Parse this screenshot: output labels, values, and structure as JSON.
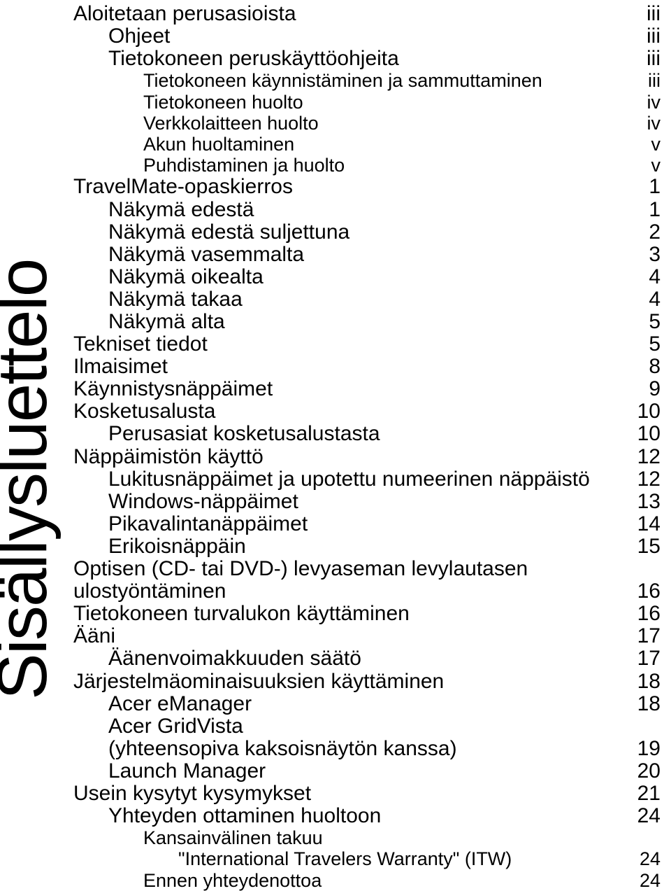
{
  "sidebar_title": "Sisällysluettelo",
  "toc": [
    {
      "level": "l0",
      "label": "Aloitetaan perusasioista",
      "page": "iii"
    },
    {
      "level": "l1",
      "label": "Ohjeet",
      "page": "iii"
    },
    {
      "level": "l1",
      "label": "Tietokoneen peruskäyttöohjeita",
      "page": "iii"
    },
    {
      "level": "l2",
      "label": "Tietokoneen käynnistäminen ja sammuttaminen",
      "page": "iii"
    },
    {
      "level": "l2",
      "label": "Tietokoneen huolto",
      "page": "iv"
    },
    {
      "level": "l2",
      "label": "Verkkolaitteen huolto",
      "page": "iv"
    },
    {
      "level": "l2",
      "label": "Akun huoltaminen",
      "page": "v"
    },
    {
      "level": "l2",
      "label": "Puhdistaminen ja huolto",
      "page": "v"
    },
    {
      "level": "l0",
      "label": "TravelMate-opaskierros",
      "page": "1"
    },
    {
      "level": "l1",
      "label": "Näkymä edestä",
      "page": "1"
    },
    {
      "level": "l1",
      "label": "Näkymä edestä suljettuna",
      "page": "2"
    },
    {
      "level": "l1",
      "label": "Näkymä vasemmalta",
      "page": "3"
    },
    {
      "level": "l1",
      "label": "Näkymä oikealta",
      "page": "4"
    },
    {
      "level": "l1",
      "label": "Näkymä takaa",
      "page": "4"
    },
    {
      "level": "l1",
      "label": "Näkymä alta",
      "page": "5"
    },
    {
      "level": "l0",
      "label": "Tekniset tiedot",
      "page": "5"
    },
    {
      "level": "l0",
      "label": "Ilmaisimet",
      "page": "8"
    },
    {
      "level": "l0",
      "label": "Käynnistysnäppäimet",
      "page": "9"
    },
    {
      "level": "l0",
      "label": "Kosketusalusta",
      "page": "10"
    },
    {
      "level": "l1",
      "label": "Perusasiat kosketusalustasta",
      "page": "10"
    },
    {
      "level": "l0",
      "label": "Näppäimistön käyttö",
      "page": "12"
    },
    {
      "level": "l1",
      "label": "Lukitusnäppäimet ja upotettu numeerinen näppäistö",
      "page": "12",
      "nowrap": true
    },
    {
      "level": "l1",
      "label": "Windows-näppäimet",
      "page": "13"
    },
    {
      "level": "l1",
      "label": "Pikavalintanäppäimet",
      "page": "14"
    },
    {
      "level": "l1",
      "label": "Erikoisnäppäin",
      "page": "15"
    },
    {
      "level": "l0",
      "label": "Optisen (CD- tai DVD-) levyaseman levylautasen",
      "page": ""
    },
    {
      "level": "l0",
      "label": "ulostyöntäminen",
      "page": "16"
    },
    {
      "level": "l0",
      "label": "Tietokoneen turvalukon käyttäminen",
      "page": "16"
    },
    {
      "level": "l0",
      "label": "Ääni",
      "page": "17"
    },
    {
      "level": "l1",
      "label": "Äänenvoimakkuuden säätö",
      "page": "17"
    },
    {
      "level": "l0",
      "label": "Järjestelmäominaisuuksien käyttäminen",
      "page": "18"
    },
    {
      "level": "l1",
      "label": "Acer eManager",
      "page": "18"
    },
    {
      "level": "l1",
      "label": "Acer GridVista",
      "page": ""
    },
    {
      "level": "l1",
      "label": "(yhteensopiva kaksoisnäytön kanssa)",
      "page": "19"
    },
    {
      "level": "l1",
      "label": "Launch Manager",
      "page": "20"
    },
    {
      "level": "l0",
      "label": "Usein kysytyt kysymykset",
      "page": "21"
    },
    {
      "level": "l1",
      "label": "Yhteyden ottaminen huoltoon",
      "page": "24"
    },
    {
      "level": "l2",
      "label": "Kansainvälinen takuu",
      "page": ""
    },
    {
      "level": "sub",
      "label": "\"International Travelers Warranty\" (ITW)",
      "page": "24"
    },
    {
      "level": "l2",
      "label": "Ennen yhteydenottoa",
      "page": "24"
    }
  ]
}
